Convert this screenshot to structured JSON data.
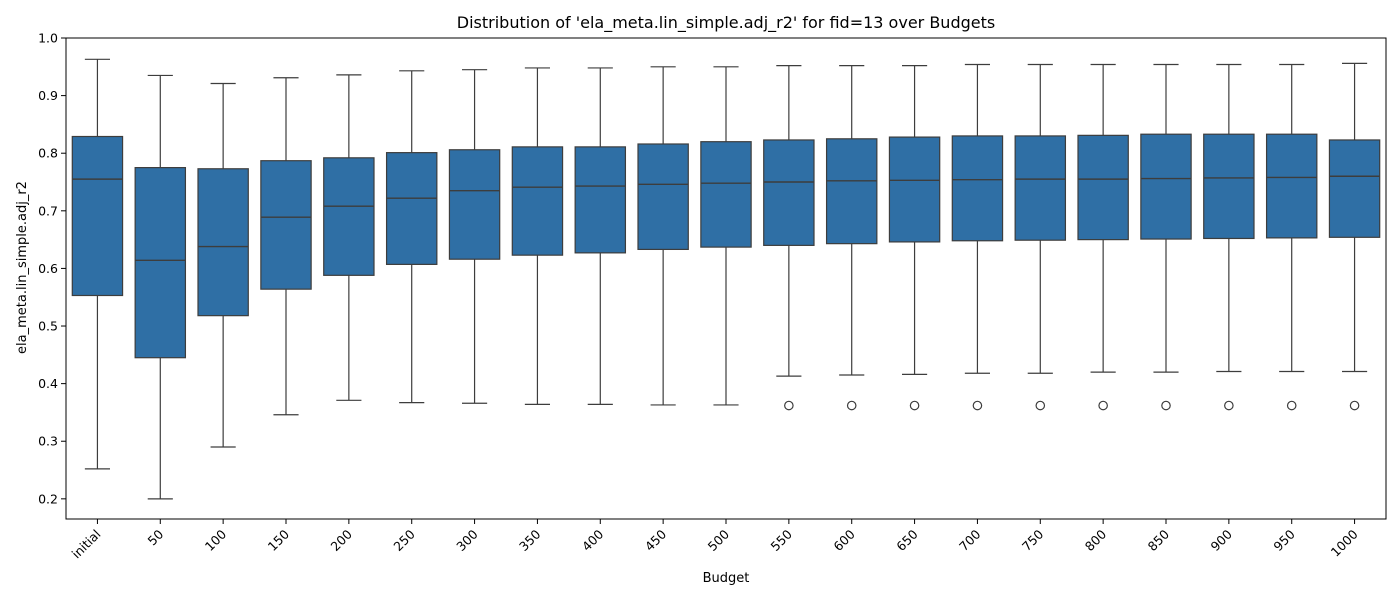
{
  "chart_data": {
    "type": "box",
    "title": "Distribution of 'ela_meta.lin_simple.adj_r2' for fid=13 over Budgets",
    "xlabel": "Budget",
    "ylabel": "ela_meta.lin_simple.adj_r2",
    "ylim": [
      0.165,
      1.0
    ],
    "yticks": [
      "0.2",
      "0.3",
      "0.4",
      "0.5",
      "0.6",
      "0.7",
      "0.8",
      "0.9",
      "1.0"
    ],
    "grid": false,
    "box_color": "#2f6fa5",
    "line_color": "#3d3d3d",
    "categories": [
      "initial",
      "50",
      "100",
      "150",
      "200",
      "250",
      "300",
      "350",
      "400",
      "450",
      "500",
      "550",
      "600",
      "650",
      "700",
      "750",
      "800",
      "850",
      "900",
      "950",
      "1000"
    ],
    "boxes": [
      {
        "whisker_low": 0.252,
        "q1": 0.553,
        "median": 0.755,
        "q3": 0.829,
        "whisker_high": 0.963,
        "outliers": []
      },
      {
        "whisker_low": 0.2,
        "q1": 0.445,
        "median": 0.614,
        "q3": 0.775,
        "whisker_high": 0.935,
        "outliers": []
      },
      {
        "whisker_low": 0.29,
        "q1": 0.518,
        "median": 0.638,
        "q3": 0.773,
        "whisker_high": 0.921,
        "outliers": []
      },
      {
        "whisker_low": 0.346,
        "q1": 0.564,
        "median": 0.689,
        "q3": 0.787,
        "whisker_high": 0.931,
        "outliers": []
      },
      {
        "whisker_low": 0.371,
        "q1": 0.588,
        "median": 0.708,
        "q3": 0.792,
        "whisker_high": 0.936,
        "outliers": []
      },
      {
        "whisker_low": 0.367,
        "q1": 0.607,
        "median": 0.722,
        "q3": 0.801,
        "whisker_high": 0.943,
        "outliers": []
      },
      {
        "whisker_low": 0.366,
        "q1": 0.616,
        "median": 0.735,
        "q3": 0.806,
        "whisker_high": 0.945,
        "outliers": []
      },
      {
        "whisker_low": 0.364,
        "q1": 0.623,
        "median": 0.741,
        "q3": 0.811,
        "whisker_high": 0.948,
        "outliers": []
      },
      {
        "whisker_low": 0.364,
        "q1": 0.627,
        "median": 0.743,
        "q3": 0.811,
        "whisker_high": 0.948,
        "outliers": []
      },
      {
        "whisker_low": 0.363,
        "q1": 0.633,
        "median": 0.746,
        "q3": 0.816,
        "whisker_high": 0.95,
        "outliers": []
      },
      {
        "whisker_low": 0.363,
        "q1": 0.637,
        "median": 0.748,
        "q3": 0.82,
        "whisker_high": 0.95,
        "outliers": []
      },
      {
        "whisker_low": 0.413,
        "q1": 0.64,
        "median": 0.75,
        "q3": 0.823,
        "whisker_high": 0.952,
        "outliers": [
          0.362
        ]
      },
      {
        "whisker_low": 0.415,
        "q1": 0.643,
        "median": 0.752,
        "q3": 0.825,
        "whisker_high": 0.952,
        "outliers": [
          0.362
        ]
      },
      {
        "whisker_low": 0.416,
        "q1": 0.646,
        "median": 0.753,
        "q3": 0.828,
        "whisker_high": 0.952,
        "outliers": [
          0.362
        ]
      },
      {
        "whisker_low": 0.418,
        "q1": 0.648,
        "median": 0.754,
        "q3": 0.83,
        "whisker_high": 0.954,
        "outliers": [
          0.362
        ]
      },
      {
        "whisker_low": 0.418,
        "q1": 0.649,
        "median": 0.755,
        "q3": 0.83,
        "whisker_high": 0.954,
        "outliers": [
          0.362
        ]
      },
      {
        "whisker_low": 0.42,
        "q1": 0.65,
        "median": 0.755,
        "q3": 0.831,
        "whisker_high": 0.954,
        "outliers": [
          0.362
        ]
      },
      {
        "whisker_low": 0.42,
        "q1": 0.651,
        "median": 0.756,
        "q3": 0.833,
        "whisker_high": 0.954,
        "outliers": [
          0.362
        ]
      },
      {
        "whisker_low": 0.421,
        "q1": 0.652,
        "median": 0.757,
        "q3": 0.833,
        "whisker_high": 0.954,
        "outliers": [
          0.362
        ]
      },
      {
        "whisker_low": 0.421,
        "q1": 0.653,
        "median": 0.758,
        "q3": 0.833,
        "whisker_high": 0.954,
        "outliers": [
          0.362
        ]
      },
      {
        "whisker_low": 0.421,
        "q1": 0.654,
        "median": 0.76,
        "q3": 0.823,
        "whisker_high": 0.956,
        "outliers": [
          0.362
        ]
      }
    ]
  }
}
